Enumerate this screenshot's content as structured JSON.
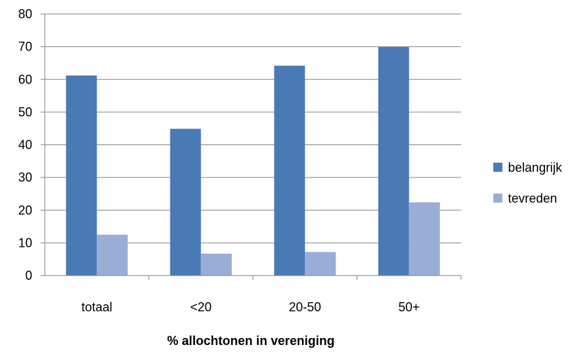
{
  "chart_data": {
    "type": "bar",
    "categories": [
      "totaal",
      "<20",
      "20-50",
      "50+"
    ],
    "series": [
      {
        "name": "belangrijk",
        "values": [
          61.2,
          44.9,
          64.2,
          69.9
        ],
        "color": "#4A7AB5"
      },
      {
        "name": "tevreden",
        "values": [
          12.5,
          6.7,
          7.2,
          22.4
        ],
        "color": "#9AADD6"
      }
    ],
    "title": "",
    "xlabel": "% allochtonen  in vereniging",
    "ylabel": "",
    "ylim": [
      0,
      80
    ],
    "yticks": [
      "0",
      "10",
      "20",
      "30",
      "40",
      "50",
      "60",
      "70",
      "80"
    ],
    "grid": true,
    "legend": "right"
  }
}
